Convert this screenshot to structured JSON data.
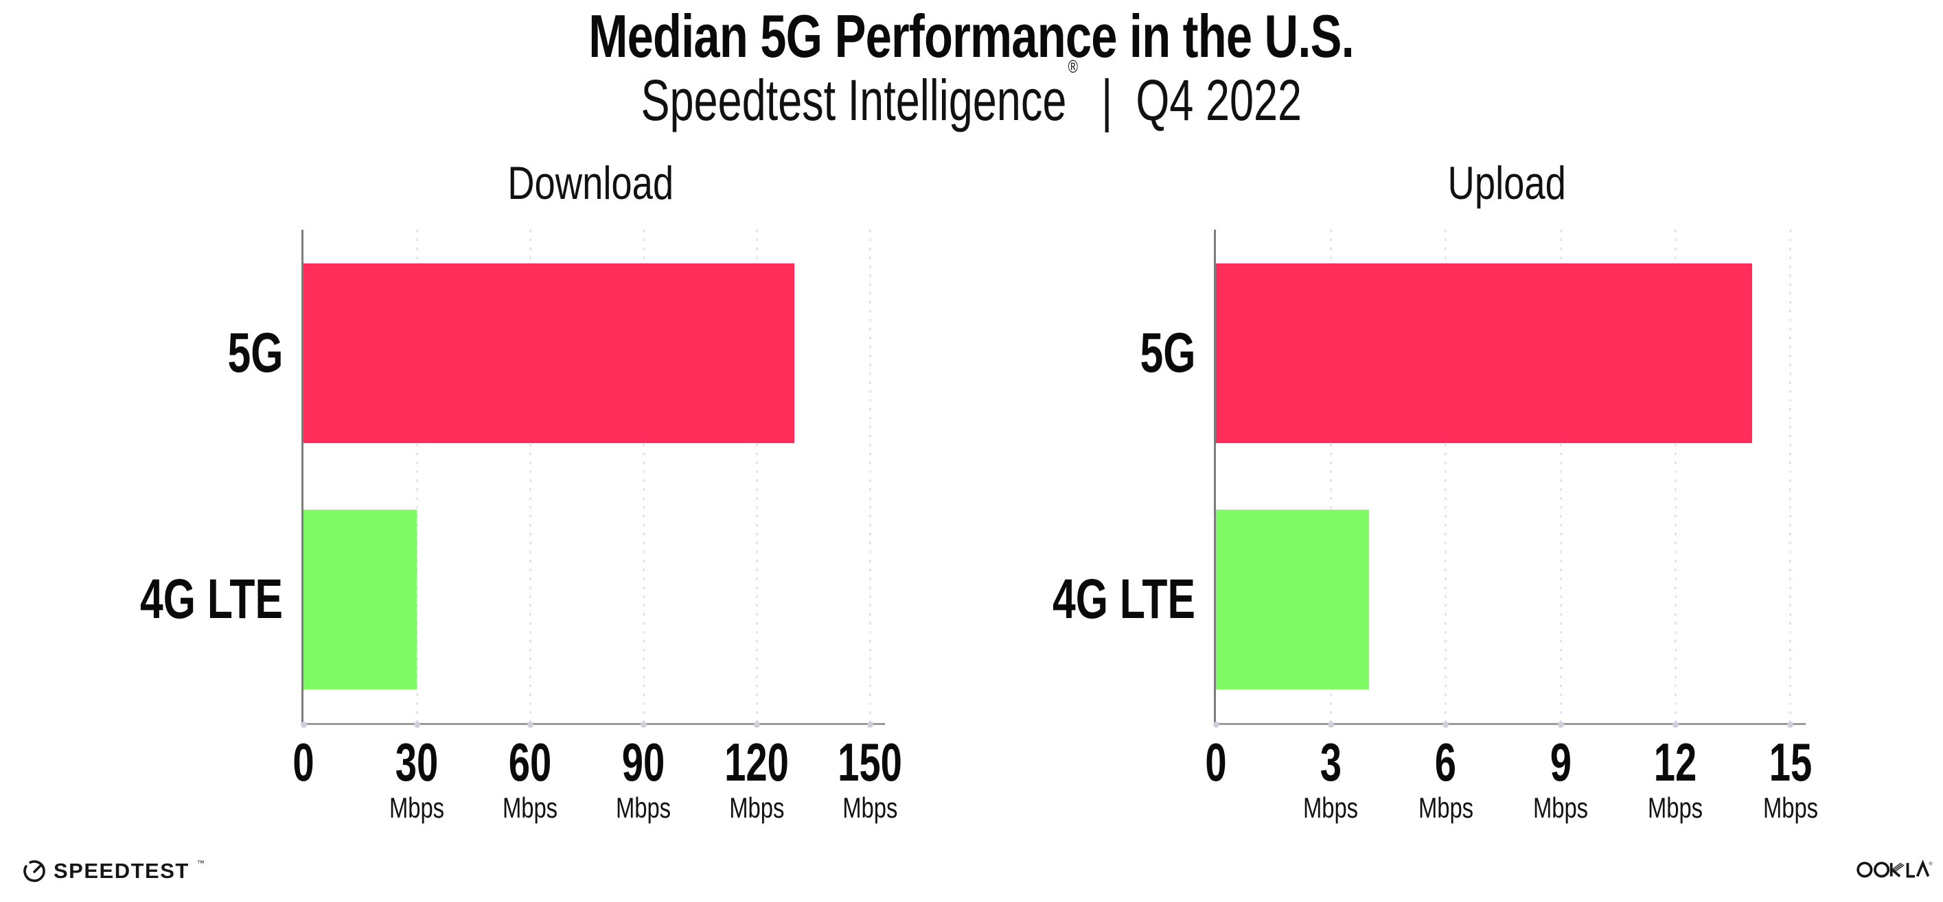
{
  "header": {
    "title": "Median 5G Performance in the U.S.",
    "subtitle": {
      "product": "Speedtest Intelligence",
      "registered": "®",
      "divider": "|",
      "period": "Q4 2022"
    }
  },
  "chart_data": [
    {
      "type": "bar",
      "orientation": "horizontal",
      "title": "Download",
      "categories": [
        "5G",
        "4G LTE"
      ],
      "values": [
        130,
        30
      ],
      "unit_label": "Mbps",
      "xticks": [
        0,
        30,
        60,
        90,
        120,
        150
      ],
      "xlim": [
        0,
        152
      ],
      "xlabel": "",
      "ylabel": "",
      "grid": "vertical-dotted",
      "legend": "none",
      "bar_colors": [
        "#FF2D5A",
        "#7EFA65"
      ]
    },
    {
      "type": "bar",
      "orientation": "horizontal",
      "title": "Upload",
      "categories": [
        "5G",
        "4G LTE"
      ],
      "values": [
        14,
        4
      ],
      "unit_label": "Mbps",
      "xticks": [
        0,
        3,
        6,
        9,
        12,
        15
      ],
      "xlim": [
        0,
        15.2
      ],
      "xlabel": "",
      "ylabel": "",
      "grid": "vertical-dotted",
      "legend": "none",
      "bar_colors": [
        "#FF2D5A",
        "#7EFA65"
      ]
    }
  ],
  "footer": {
    "speedtest_label": "SPEEDTEST",
    "speedtest_tm": "™",
    "ookla_label": "OOKLA",
    "ookla_reg": "®"
  },
  "colors": {
    "bar-5g": "#FF2D5A",
    "bar-4g": "#7EFA65",
    "gridline": "#E1E2EC",
    "baseline": "#9B9B9B",
    "spine": "#7C7C7C",
    "tick-dot": "#CDCFDB",
    "text": "#0A0A0A"
  }
}
